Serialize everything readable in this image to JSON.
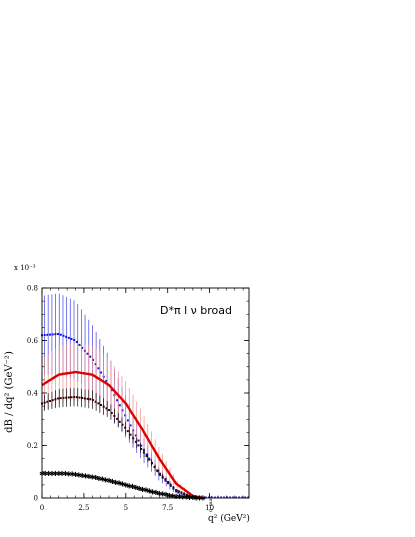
{
  "chart_data": {
    "type": "line",
    "title": "",
    "legend_text": "D*π l ν broad",
    "exponent_label": "x 10⁻³",
    "ylabel": "dB / dq² (GeV⁻²)",
    "xlabel": "q² (GeV²)",
    "x_extra_label": "q_max",
    "xlim": [
      0,
      12.35
    ],
    "ylim": [
      0,
      0.8
    ],
    "x_ticks": [
      {
        "v": 0,
        "label": "0"
      },
      {
        "v": 2.5,
        "label": "2.5"
      },
      {
        "v": 5,
        "label": "5"
      },
      {
        "v": 7.5,
        "label": "7.5"
      },
      {
        "v": 10,
        "label": "10"
      }
    ],
    "y_ticks": [
      {
        "v": 0,
        "label": "0"
      },
      {
        "v": 0.2,
        "label": "0.2"
      },
      {
        "v": 0.4,
        "label": "0.4"
      },
      {
        "v": 0.6,
        "label": "0.6"
      },
      {
        "v": 0.8,
        "label": "0.8"
      }
    ],
    "x_endpoint": 9.6,
    "series": [
      {
        "style": "dashed-dots",
        "color": "#1010e0",
        "err_color": "#3a3ae8",
        "x": [
          0,
          1,
          2,
          3,
          4,
          5,
          6,
          7,
          8,
          9,
          9.6
        ],
        "y": [
          0.62,
          0.625,
          0.6,
          0.53,
          0.43,
          0.31,
          0.19,
          0.09,
          0.025,
          0.002,
          0
        ],
        "err": [
          0.15,
          0.155,
          0.15,
          0.13,
          0.11,
          0.08,
          0.05,
          0.025,
          0.01,
          0.002,
          0
        ]
      },
      {
        "style": "solid",
        "color": "#e00000",
        "err_color": "#f08a8a",
        "x": [
          0,
          1,
          2,
          3,
          4,
          5,
          6,
          7,
          8,
          9,
          9.6
        ],
        "y": [
          0.43,
          0.47,
          0.48,
          0.47,
          0.43,
          0.36,
          0.26,
          0.15,
          0.055,
          0.008,
          0
        ],
        "err": [
          0.1,
          0.11,
          0.11,
          0.11,
          0.1,
          0.085,
          0.065,
          0.04,
          0.015,
          0.003,
          0
        ]
      },
      {
        "style": "dots",
        "color": "#3a0000",
        "err_color": "#000000",
        "x": [
          0,
          1,
          2,
          3,
          4,
          5,
          6,
          7,
          8,
          9,
          9.6
        ],
        "y": [
          0.36,
          0.38,
          0.385,
          0.375,
          0.335,
          0.265,
          0.18,
          0.095,
          0.03,
          0.003,
          0
        ],
        "err": [
          0.03,
          0.035,
          0.035,
          0.035,
          0.03,
          0.025,
          0.018,
          0.01,
          0.004,
          0.001,
          0
        ]
      },
      {
        "style": "stars",
        "color": "#000000",
        "err_color": "#000000",
        "x": [
          0,
          1,
          2,
          3,
          4,
          5,
          6,
          7,
          8,
          9,
          9.6
        ],
        "y": [
          0.093,
          0.094,
          0.09,
          0.08,
          0.066,
          0.05,
          0.033,
          0.017,
          0.006,
          0.001,
          0
        ],
        "err": [
          0,
          0,
          0,
          0,
          0,
          0,
          0,
          0,
          0,
          0,
          0
        ]
      }
    ]
  }
}
